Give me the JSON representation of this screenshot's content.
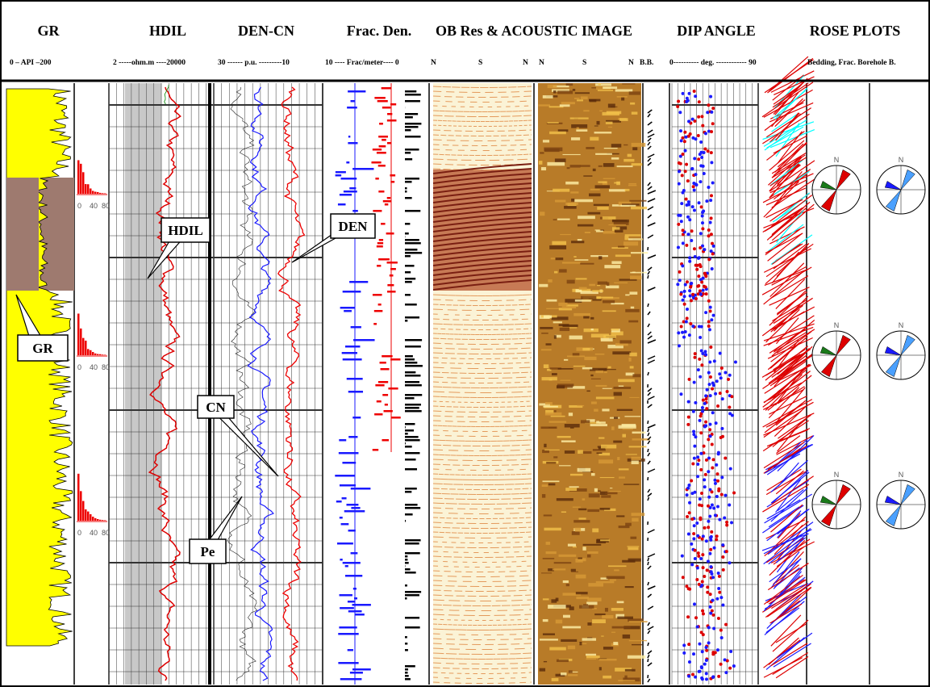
{
  "header": {
    "tracks": [
      "GR",
      "HDIL",
      "DEN-CN",
      "Frac. Den.",
      "OB Res & ACOUSTIC IMAGE",
      "DIP ANGLE",
      "ROSE PLOTS"
    ],
    "scales": [
      "0 – API –200",
      "2 -----ohm.m ----20000",
      "30 ------ p.u. ---------10",
      "10 ---- Frac/meter---- 0",
      "N",
      "S",
      "N",
      "N",
      "S",
      "N",
      "B.B.",
      "0---------- deg. ------------ 90",
      "Bedding, Frac. Borehole B."
    ]
  },
  "callouts": [
    "HDIL",
    "DEN",
    "GR",
    "CN",
    "Pe"
  ],
  "histogram_axis": [
    "0",
    "40",
    "80"
  ],
  "rose_north": "N"
}
